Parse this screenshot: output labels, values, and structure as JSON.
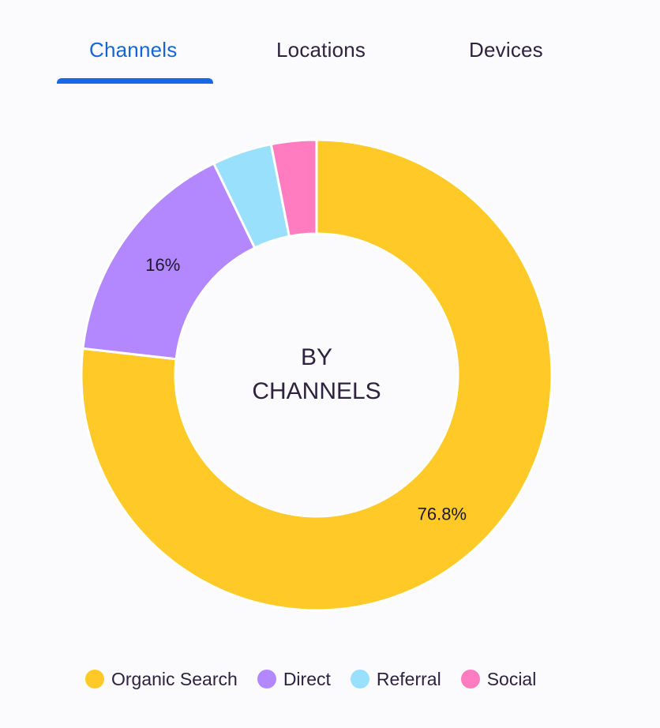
{
  "tabs": [
    {
      "label": "Channels",
      "active": true
    },
    {
      "label": "Locations",
      "active": false
    },
    {
      "label": "Devices",
      "active": false
    }
  ],
  "accent_color": "#1668e3",
  "center": {
    "line1": "BY",
    "line2": "CHANNELS"
  },
  "legend": [
    {
      "label": "Organic Search",
      "color": "#ffca28"
    },
    {
      "label": "Direct",
      "color": "#b388ff"
    },
    {
      "label": "Referral",
      "color": "#99e0fc"
    },
    {
      "label": "Social",
      "color": "#ff7cc0"
    }
  ],
  "chart_data": {
    "type": "pie",
    "variant": "donut",
    "title": "BY CHANNELS",
    "categories": [
      "Organic Search",
      "Direct",
      "Referral",
      "Social"
    ],
    "values": [
      76.8,
      16,
      4.1,
      3.1
    ],
    "colors": [
      "#ffca28",
      "#b388ff",
      "#99e0fc",
      "#ff7cc0"
    ],
    "data_labels": [
      "76.8%",
      "16%",
      "",
      ""
    ],
    "start_angle": 0,
    "direction": "clockwise",
    "legend_position": "bottom"
  }
}
